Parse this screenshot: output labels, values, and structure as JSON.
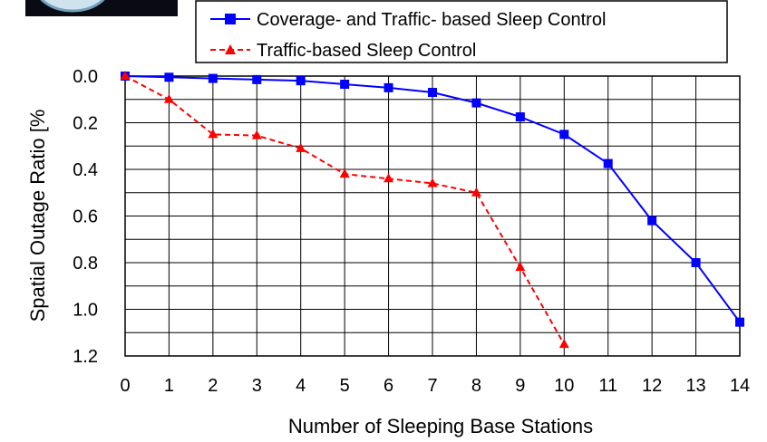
{
  "chart_data": {
    "type": "line",
    "xlabel": "Number of Sleeping Base Stations",
    "ylabel": "Spatial Outage Ratio [%",
    "x": [
      0,
      1,
      2,
      3,
      4,
      5,
      6,
      7,
      8,
      9,
      10,
      11,
      12,
      13,
      14
    ],
    "xlim": [
      0,
      14
    ],
    "ylim": [
      0.0,
      1.2
    ],
    "y_inverted": true,
    "y_ticks": [
      "0.0",
      "0.2",
      "0.4",
      "0.6",
      "0.8",
      "1.0",
      "1.2"
    ],
    "y_minor_step": 0.1,
    "grid": true,
    "legend_position": "top",
    "series": [
      {
        "name": "Coverage- and Traffic- based Sleep Control",
        "color": "#0000ff",
        "marker": "square",
        "line": "solid",
        "x": [
          0,
          1,
          2,
          3,
          4,
          5,
          6,
          7,
          8,
          9,
          10,
          11,
          12,
          13,
          14
        ],
        "values": [
          0.0,
          0.005,
          0.01,
          0.015,
          0.02,
          0.035,
          0.05,
          0.07,
          0.115,
          0.175,
          0.25,
          0.375,
          0.62,
          0.8,
          1.055
        ]
      },
      {
        "name": "Traffic-based Sleep Control",
        "color": "#ff0000",
        "marker": "triangle",
        "line": "dashed",
        "x": [
          0,
          1,
          2,
          3,
          4,
          5,
          6,
          7,
          8,
          9,
          10
        ],
        "values": [
          0.0,
          0.1,
          0.25,
          0.255,
          0.31,
          0.42,
          0.44,
          0.46,
          0.5,
          0.82,
          1.15
        ]
      }
    ]
  }
}
